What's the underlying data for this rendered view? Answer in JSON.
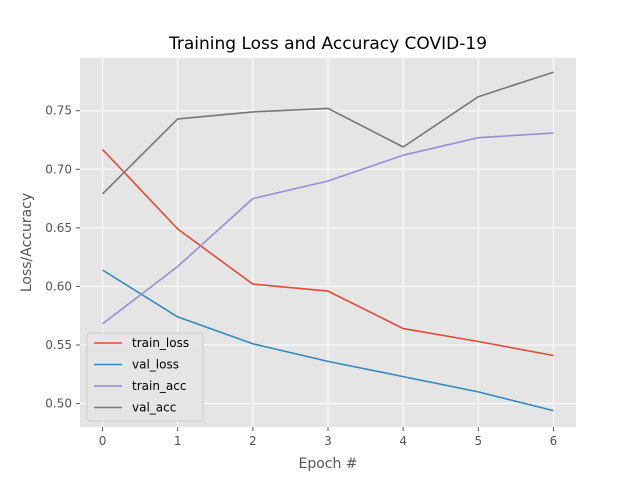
{
  "chart_data": {
    "type": "line",
    "title": "Training Loss and Accuracy  COVID-19",
    "xlabel": "Epoch #",
    "ylabel": "Loss/Accuracy",
    "x": [
      0,
      1,
      2,
      3,
      4,
      5,
      6
    ],
    "xlim": [
      -0.3,
      6.3
    ],
    "ylim": [
      0.48,
      0.795
    ],
    "xticks": [
      0,
      1,
      2,
      3,
      4,
      5,
      6
    ],
    "yticks": [
      0.5,
      0.55,
      0.6,
      0.65,
      0.7,
      0.75
    ],
    "grid": true,
    "legend_position": "lower-left",
    "series": [
      {
        "name": "train_loss",
        "color": "#E24A33",
        "values": [
          0.717,
          0.649,
          0.602,
          0.596,
          0.564,
          0.553,
          0.541
        ]
      },
      {
        "name": "val_loss",
        "color": "#348ABD",
        "values": [
          0.614,
          0.574,
          0.551,
          0.536,
          0.523,
          0.51,
          0.494
        ]
      },
      {
        "name": "train_acc",
        "color": "#988ED5",
        "values": [
          0.568,
          0.617,
          0.675,
          0.69,
          0.712,
          0.727,
          0.731
        ]
      },
      {
        "name": "val_acc",
        "color": "#777777",
        "values": [
          0.679,
          0.743,
          0.749,
          0.752,
          0.719,
          0.762,
          0.783
        ]
      }
    ]
  }
}
